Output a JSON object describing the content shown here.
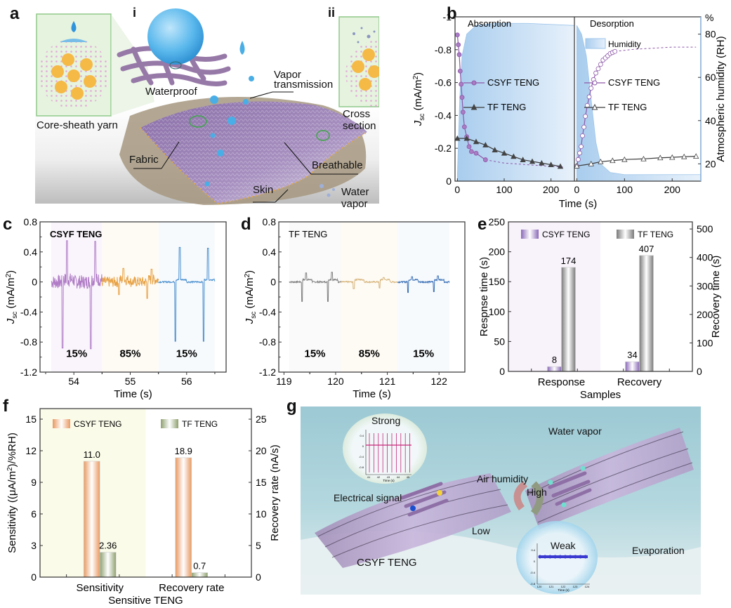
{
  "panels": {
    "a": {
      "letter": "a",
      "sub_i": "i",
      "sub_ii": "ii",
      "labels": {
        "core_sheath": "Core-sheath yarn",
        "waterproof": "Waterproof",
        "vapor1": "Vapor",
        "vapor2": "transmission",
        "cross_section": "Cross section",
        "fabric": "Fabric",
        "breathable": "Breathable",
        "skin": "Skin",
        "water_vapor": "Water vapor"
      },
      "colors": {
        "inset_bg": "#e6f3df",
        "inset_border": "#8fc98a",
        "fabric": "#9b86b4",
        "core": "#f5b946",
        "sheath_dot": "#e2a8d8",
        "drop": "#3ea2e0",
        "skin": "#a89c88"
      }
    },
    "g": {
      "letter": "g",
      "labels": {
        "strong": "Strong",
        "electrical_signal": "Electrical signal",
        "water_vapor": "Water vapor",
        "air_humidity": "Air humidity",
        "high": "High",
        "low": "Low",
        "csyf": "CSYF TENG",
        "weak": "Weak",
        "evaporation": "Evaporation"
      },
      "inset_strong": {
        "yticks": [
          "0.4",
          "0",
          "-0.4",
          "-0.8"
        ],
        "xticks": [
          "41",
          "42",
          "43",
          "44",
          "45"
        ],
        "xlabel": "Time (s)",
        "ylabel": "Jsc (mA m-2)",
        "color": "#c8287a"
      },
      "inset_weak": {
        "yticks": [
          "0.4",
          "0",
          "-0.4",
          "-0.8"
        ],
        "xticks": [
          "120",
          "121",
          "122",
          "123",
          "124"
        ],
        "xlabel": "Time (s)",
        "ylabel": "Jsc (mA m-2)",
        "color": "#3a3ad0"
      }
    }
  },
  "chart_data": [
    {
      "id": "b",
      "type": "line",
      "letter": "b",
      "xlabel": "Time (s)",
      "ylabel_left": "Jsc (mA/m2)",
      "ylabel_right": "Atmospheric humidity (RH)",
      "right_unit": "%",
      "left_ylim": [
        0,
        -1
      ],
      "left_yticks": [
        "-1",
        "-0.8",
        "-0.6",
        "-0.4",
        "-0.2",
        "0"
      ],
      "right_ylim": [
        12,
        88
      ],
      "right_yticks": [
        "80",
        "60",
        "40",
        "20"
      ],
      "sections": [
        {
          "title": "Absorption",
          "xlim": [
            -5,
            250
          ],
          "xticks": [
            "0",
            "100",
            "200"
          ],
          "series": [
            {
              "name": "CSYF TENG",
              "marker": "filled-circle",
              "color": "#8d58a8",
              "x": [
                0,
                2,
                4,
                6,
                8,
                10,
                12,
                15,
                20,
                25,
                30,
                40,
                60
              ],
              "y": [
                -0.89,
                -0.83,
                -0.77,
                -0.67,
                -0.59,
                -0.51,
                -0.42,
                -0.33,
                -0.27,
                -0.21,
                -0.18,
                -0.17,
                -0.13
              ],
              "dashed_x": [
                60,
                100,
                150,
                200,
                230
              ],
              "dashed_y": [
                -0.13,
                -0.11,
                -0.1,
                -0.09,
                -0.085
              ]
            },
            {
              "name": "TF TENG",
              "marker": "filled-triangle",
              "color": "#3a3a3a",
              "x": [
                0,
                20,
                40,
                60,
                80,
                100,
                120,
                140,
                160,
                180,
                200,
                220
              ],
              "y": [
                -0.26,
                -0.26,
                -0.24,
                -0.22,
                -0.19,
                -0.17,
                -0.15,
                -0.13,
                -0.12,
                -0.11,
                -0.1,
                -0.09
              ]
            }
          ],
          "humidity": {
            "x": [
              0,
              5,
              10,
              20,
              40,
              80,
              150,
              250
            ],
            "y": [
              15,
              50,
              70,
              80,
              84,
              85,
              85,
              84
            ]
          }
        },
        {
          "title": "Desorption",
          "xlim": [
            -5,
            260
          ],
          "xticks": [
            "0",
            "100",
            "200"
          ],
          "series": [
            {
              "name": "CSYF TENG",
              "marker": "open-circle",
              "color": "#8d58a8",
              "x": [
                0,
                3,
                6,
                9,
                12,
                15,
                18,
                22,
                26,
                30,
                35,
                40,
                45,
                50,
                55,
                60,
                65,
                70,
                75,
                80
              ],
              "y_rh": [
                19,
                22,
                25,
                28,
                33,
                37,
                42,
                47,
                51,
                55,
                59,
                62,
                64,
                66,
                68,
                69,
                70,
                71,
                71.5,
                72
              ],
              "dashed_x": [
                80,
                120,
                160,
                200,
                250
              ],
              "dashed_y_rh": [
                72,
                73,
                73.5,
                74,
                74
              ]
            },
            {
              "name": "TF TENG",
              "marker": "open-triangle",
              "color": "#3a3a3a",
              "x": [
                0,
                30,
                50,
                75,
                100,
                140,
                175,
                200,
                225,
                250
              ],
              "y_rh": [
                19,
                20,
                21,
                21.5,
                22,
                22.3,
                22.8,
                23,
                23.3,
                23.5
              ]
            }
          ],
          "humidity": {
            "x": [
              0,
              10,
              20,
              30,
              40,
              50,
              70,
              100,
              150,
              200,
              260
            ],
            "y": [
              84,
              80,
              70,
              50,
              30,
              20,
              16,
              15,
              15,
              15,
              15
            ]
          }
        }
      ],
      "legend_humidity": "Humidity"
    },
    {
      "id": "c",
      "type": "line",
      "letter": "c",
      "title": "CSYF TENG",
      "xlabel": "Time (s)",
      "ylabel": "Jsc (mA/m2)",
      "xlim": [
        53.4,
        56.7
      ],
      "ylim": [
        -1.2,
        0.8
      ],
      "yticks": [
        "0.8",
        "0.4",
        "0",
        "-0.4",
        "-0.8",
        "-1.2"
      ],
      "xticks": [
        "54",
        "55",
        "56"
      ],
      "segments": [
        {
          "label": "15%",
          "color": "#b07cc6",
          "x_range": [
            53.6,
            54.5
          ],
          "peaks": [
            {
              "t": 53.8,
              "min": -0.88,
              "max": 0.55
            },
            {
              "t": 54.3,
              "min": -0.89,
              "max": 0.54
            }
          ],
          "noise": 0.09
        },
        {
          "label": "85%",
          "color": "#e8a245",
          "x_range": [
            54.5,
            55.5
          ],
          "peaks": [
            {
              "t": 54.8,
              "min": -0.17,
              "max": 0.18
            },
            {
              "t": 55.3,
              "min": -0.22,
              "max": 0.17
            }
          ],
          "noise": 0.07
        },
        {
          "label": "15%",
          "color": "#4a90d0",
          "x_range": [
            55.5,
            56.5
          ],
          "peaks": [
            {
              "t": 55.8,
              "min": -0.79,
              "max": 0.46
            },
            {
              "t": 56.3,
              "min": -0.79,
              "max": 0.45
            }
          ],
          "noise": 0.01
        }
      ]
    },
    {
      "id": "d",
      "type": "line",
      "letter": "d",
      "title": "TF TENG",
      "xlabel": "Time (s)",
      "ylabel": "Jsc (mA/m2)",
      "xlim": [
        118.9,
        122.5
      ],
      "ylim": [
        -1.2,
        0.8
      ],
      "yticks": [
        "0.8",
        "0.4",
        "0",
        "-0.4",
        "-0.8",
        "-1.2"
      ],
      "xticks": [
        "119",
        "120",
        "121",
        "122"
      ],
      "segments": [
        {
          "label": "15%",
          "color": "#808080",
          "x_range": [
            119.1,
            120.1
          ],
          "peaks": [
            {
              "t": 119.35,
              "min": -0.26,
              "max": 0.12
            },
            {
              "t": 119.85,
              "min": -0.26,
              "max": 0.13
            }
          ],
          "noise": 0.01
        },
        {
          "label": "85%",
          "color": "#d6b47a",
          "x_range": [
            120.1,
            121.2
          ],
          "peaks": [
            {
              "t": 120.35,
              "min": -0.09,
              "max": 0.04
            },
            {
              "t": 120.85,
              "min": -0.08,
              "max": 0.06
            }
          ],
          "noise": 0.01
        },
        {
          "label": "15%",
          "color": "#3d72b8",
          "x_range": [
            121.2,
            122.2
          ],
          "peaks": [
            {
              "t": 121.4,
              "min": -0.14,
              "max": 0.07
            },
            {
              "t": 121.9,
              "min": -0.13,
              "max": 0.08
            }
          ],
          "noise": 0.01
        }
      ]
    },
    {
      "id": "e",
      "type": "bar",
      "letter": "e",
      "xlabel": "Samples",
      "ylabel_left": "Respnse time (s)",
      "ylabel_right": "Recovery time (s)",
      "categories": [
        "Response",
        "Recovery"
      ],
      "left_ylim": [
        0,
        250
      ],
      "left_yticks": [
        "250",
        "200",
        "150",
        "100",
        "50",
        "0"
      ],
      "right_ylim": [
        0,
        525
      ],
      "right_yticks": [
        "500",
        "400",
        "300",
        "200",
        "100",
        "0"
      ],
      "series": [
        {
          "name": "CSYF TENG",
          "color": "#8a6ab8",
          "values": [
            8,
            34
          ],
          "labels": [
            "8",
            "34"
          ]
        },
        {
          "name": "TF TENG",
          "color": "#7a7a7a",
          "values": [
            174,
            407
          ],
          "labels": [
            "174",
            "407"
          ]
        }
      ],
      "axis_for_category": [
        "left",
        "right"
      ]
    },
    {
      "id": "f",
      "type": "bar",
      "letter": "f",
      "xlabel": "Sensitive TENG",
      "ylabel_left": "Sensitivity ((μA/m2)/%RH)",
      "ylabel_right": "Recovery rate (nA/s)",
      "categories": [
        "Sensitivity",
        "Recovery rate"
      ],
      "left_ylim": [
        0,
        16
      ],
      "left_yticks": [
        "15",
        "12",
        "9",
        "6",
        "3",
        "0"
      ],
      "right_ylim": [
        0,
        26.67
      ],
      "right_yticks": [
        "25",
        "20",
        "15",
        "10",
        "5",
        "0"
      ],
      "series": [
        {
          "name": "CSYF TENG",
          "color": "#e89a62",
          "values": [
            11.0,
            18.9
          ],
          "labels": [
            "11.0",
            "18.9"
          ]
        },
        {
          "name": "TF TENG",
          "color": "#8fa070",
          "values": [
            2.36,
            0.7
          ],
          "labels": [
            "2.36",
            "0.7"
          ]
        }
      ],
      "axis_for_category": [
        "left",
        "right"
      ]
    }
  ]
}
